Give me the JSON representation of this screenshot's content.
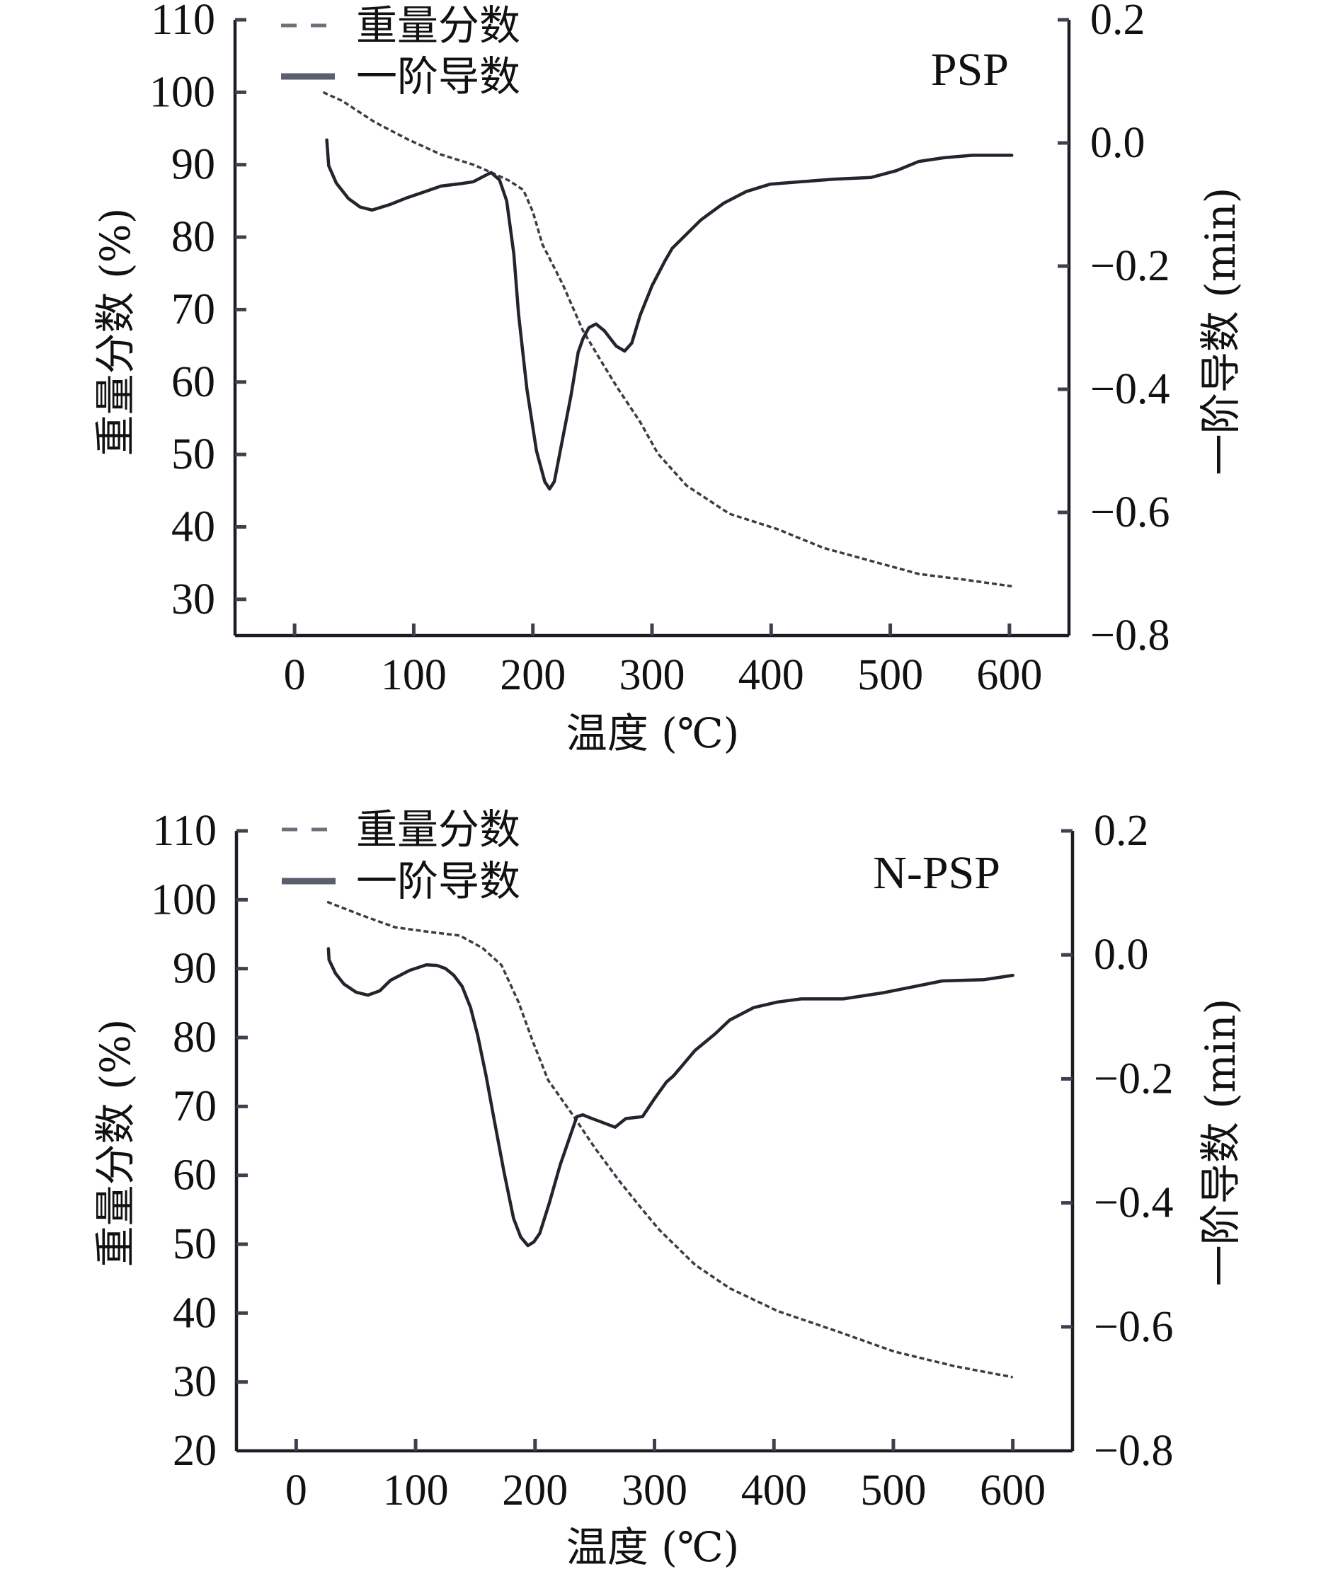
{
  "chart_data": [
    {
      "type": "line",
      "title": "PSP",
      "xlabel": "温度 (℃)",
      "ylabel": "重量分数 (%)",
      "y2label": "一阶导数 (min)",
      "xlim": [
        -50,
        650
      ],
      "ylim": [
        25,
        110
      ],
      "y2lim": [
        -0.8,
        0.2
      ],
      "xtick_labels": [
        "0",
        "100",
        "200",
        "300",
        "400",
        "500",
        "600"
      ],
      "ytick_labels": [
        "30",
        "40",
        "50",
        "60",
        "70",
        "80",
        "90",
        "100",
        "110"
      ],
      "y2tick_labels": [
        "0.2",
        "0.0",
        "−0.2",
        "−0.4",
        "−0.6",
        "−0.8"
      ],
      "grid": false,
      "legend_position": "top-left",
      "series": [
        {
          "name": "重量分数",
          "axis": "left",
          "style": "dashed",
          "color": "#3a3d47",
          "points": [
            [
              24,
              100.0
            ],
            [
              40,
              98.8
            ],
            [
              67,
              95.9
            ],
            [
              95,
              93.5
            ],
            [
              123,
              91.4
            ],
            [
              150,
              90.0
            ],
            [
              164,
              89.0
            ],
            [
              180,
              87.8
            ],
            [
              192,
              86.5
            ],
            [
              200,
              83.5
            ],
            [
              208,
              79.0
            ],
            [
              225,
              73.5
            ],
            [
              242,
              67.1
            ],
            [
              255,
              63.5
            ],
            [
              271,
              59.2
            ],
            [
              290,
              54.5
            ],
            [
              305,
              50.1
            ],
            [
              329,
              45.7
            ],
            [
              365,
              41.8
            ],
            [
              405,
              39.7
            ],
            [
              444,
              37.1
            ],
            [
              484,
              35.3
            ],
            [
              524,
              33.5
            ],
            [
              563,
              32.7
            ],
            [
              602,
              31.8
            ]
          ]
        },
        {
          "name": "一阶导数",
          "axis": "right",
          "style": "solid",
          "color": "#23252d",
          "points": [
            [
              27,
              0.005
            ],
            [
              28.6,
              -0.037
            ],
            [
              35,
              -0.065
            ],
            [
              45,
              -0.09
            ],
            [
              55,
              -0.104
            ],
            [
              65,
              -0.109
            ],
            [
              80,
              -0.1
            ],
            [
              93,
              -0.09
            ],
            [
              108,
              -0.08
            ],
            [
              123,
              -0.07
            ],
            [
              140,
              -0.066
            ],
            [
              150,
              -0.063
            ],
            [
              158,
              -0.055
            ],
            [
              165,
              -0.048
            ],
            [
              172,
              -0.06
            ],
            [
              178,
              -0.094
            ],
            [
              184,
              -0.18
            ],
            [
              188,
              -0.278
            ],
            [
              195,
              -0.4
            ],
            [
              203,
              -0.5
            ],
            [
              210,
              -0.55
            ],
            [
              214,
              -0.562
            ],
            [
              218,
              -0.55
            ],
            [
              225,
              -0.48
            ],
            [
              232,
              -0.41
            ],
            [
              238,
              -0.34
            ],
            [
              242,
              -0.318
            ],
            [
              247,
              -0.3
            ],
            [
              253,
              -0.294
            ],
            [
              260,
              -0.305
            ],
            [
              270,
              -0.33
            ],
            [
              277,
              -0.338
            ],
            [
              283,
              -0.325
            ],
            [
              290,
              -0.28
            ],
            [
              300,
              -0.232
            ],
            [
              311,
              -0.191
            ],
            [
              317,
              -0.171
            ],
            [
              341,
              -0.125
            ],
            [
              360,
              -0.098
            ],
            [
              379,
              -0.079
            ],
            [
              399,
              -0.067
            ],
            [
              425,
              -0.063
            ],
            [
              452,
              -0.059
            ],
            [
              484,
              -0.056
            ],
            [
              505,
              -0.045
            ],
            [
              524,
              -0.03
            ],
            [
              545,
              -0.024
            ],
            [
              569,
              -0.02
            ],
            [
              602,
              -0.02
            ]
          ]
        }
      ]
    },
    {
      "type": "line",
      "title": "N-PSP",
      "xlabel": "温度 (℃)",
      "ylabel": "重量分数 (%)",
      "y2label": "一阶导数 (min)",
      "xlim": [
        -50,
        650
      ],
      "ylim": [
        20,
        110
      ],
      "y2lim": [
        -0.8,
        0.2
      ],
      "xtick_labels": [
        "0",
        "100",
        "200",
        "300",
        "400",
        "500",
        "600"
      ],
      "ytick_labels": [
        "20",
        "30",
        "40",
        "50",
        "60",
        "70",
        "80",
        "90",
        "100",
        "110"
      ],
      "y2tick_labels": [
        "0.2",
        "0.0",
        "−0.2",
        "−0.4",
        "−0.6",
        "−0.8"
      ],
      "grid": false,
      "legend_position": "top-left",
      "series": [
        {
          "name": "重量分数",
          "axis": "left",
          "style": "dashed",
          "color": "#3a3d47",
          "points": [
            [
              26,
              99.7
            ],
            [
              54,
              97.8
            ],
            [
              83,
              96.0
            ],
            [
              113,
              95.3
            ],
            [
              137,
              94.8
            ],
            [
              156,
              93.0
            ],
            [
              172,
              90.5
            ],
            [
              186,
              85.2
            ],
            [
              198,
              79.5
            ],
            [
              211,
              73.8
            ],
            [
              231,
              68.9
            ],
            [
              250,
              64.0
            ],
            [
              270,
              59.3
            ],
            [
              290,
              55.0
            ],
            [
              304,
              52.1
            ],
            [
              334,
              47.0
            ],
            [
              363,
              43.6
            ],
            [
              403,
              40.3
            ],
            [
              452,
              37.4
            ],
            [
              501,
              34.4
            ],
            [
              551,
              32.3
            ],
            [
              600,
              30.7
            ]
          ]
        },
        {
          "name": "一阶导数",
          "axis": "right",
          "style": "solid",
          "color": "#23252d",
          "points": [
            [
              27,
              0.01
            ],
            [
              27.5,
              -0.008
            ],
            [
              33,
              -0.03
            ],
            [
              40,
              -0.047
            ],
            [
              50,
              -0.06
            ],
            [
              60,
              -0.065
            ],
            [
              70,
              -0.058
            ],
            [
              79,
              -0.041
            ],
            [
              95,
              -0.025
            ],
            [
              109,
              -0.016
            ],
            [
              118,
              -0.017
            ],
            [
              125,
              -0.022
            ],
            [
              132,
              -0.033
            ],
            [
              139,
              -0.051
            ],
            [
              146,
              -0.085
            ],
            [
              152,
              -0.13
            ],
            [
              159,
              -0.195
            ],
            [
              166,
              -0.268
            ],
            [
              174,
              -0.35
            ],
            [
              182,
              -0.425
            ],
            [
              188,
              -0.455
            ],
            [
              194,
              -0.469
            ],
            [
              199,
              -0.463
            ],
            [
              204,
              -0.449
            ],
            [
              212,
              -0.4
            ],
            [
              221,
              -0.339
            ],
            [
              228,
              -0.3
            ],
            [
              235,
              -0.261
            ],
            [
              240,
              -0.258
            ],
            [
              245,
              -0.262
            ],
            [
              256,
              -0.27
            ],
            [
              267,
              -0.278
            ],
            [
              276,
              -0.264
            ],
            [
              290,
              -0.261
            ],
            [
              300,
              -0.232
            ],
            [
              310,
              -0.205
            ],
            [
              316,
              -0.195
            ],
            [
              334,
              -0.154
            ],
            [
              351,
              -0.127
            ],
            [
              363,
              -0.105
            ],
            [
              383,
              -0.085
            ],
            [
              403,
              -0.076
            ],
            [
              423,
              -0.071
            ],
            [
              458,
              -0.071
            ],
            [
              492,
              -0.061
            ],
            [
              541,
              -0.042
            ],
            [
              576,
              -0.04
            ],
            [
              600,
              -0.033
            ]
          ]
        }
      ]
    }
  ]
}
